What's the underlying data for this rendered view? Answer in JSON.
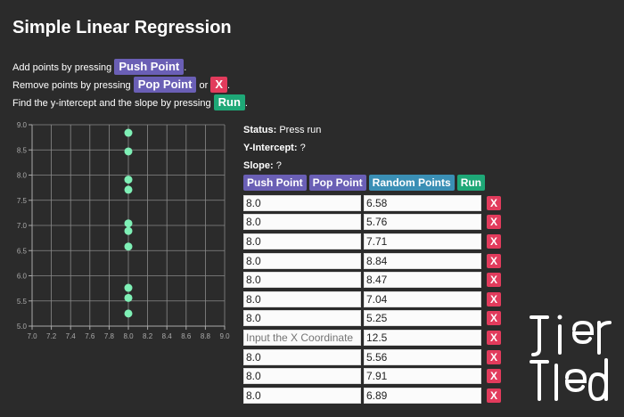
{
  "page": {
    "title": "Simple Linear Regression",
    "instructions": {
      "line1_prefix": "Add points by pressing",
      "line1_btn": "Push Point",
      "line1_suffix": ".",
      "line2_prefix": "Remove points by pressing",
      "line2_btn": "Pop Point",
      "line2_mid": "or",
      "line2_x": "X",
      "line2_suffix": ".",
      "line3_prefix": "Find the y-intercept and the slope by pressing",
      "line3_btn": "Run",
      "line3_suffix": "."
    }
  },
  "status": {
    "status_label": "Status:",
    "status_value": "Press run",
    "intercept_label": "Y-Intercept:",
    "intercept_value": "?",
    "slope_label": "Slope:",
    "slope_value": "?"
  },
  "buttons": {
    "push": "Push Point",
    "pop": "Pop Point",
    "random": "Random Points",
    "run": "Run"
  },
  "points": [
    {
      "x": "8.0",
      "y": "6.58"
    },
    {
      "x": "8.0",
      "y": "5.76"
    },
    {
      "x": "8.0",
      "y": "7.71"
    },
    {
      "x": "8.0",
      "y": "8.84"
    },
    {
      "x": "8.0",
      "y": "8.47"
    },
    {
      "x": "8.0",
      "y": "7.04"
    },
    {
      "x": "8.0",
      "y": "5.25"
    },
    {
      "x": "",
      "y": "12.5",
      "x_placeholder": "Input the X Coordinate"
    },
    {
      "x": "8.0",
      "y": "5.56"
    },
    {
      "x": "8.0",
      "y": "7.91"
    },
    {
      "x": "8.0",
      "y": "6.89"
    }
  ],
  "remove_label": "X",
  "colors": {
    "background": "#2b2b2b",
    "purple": "#6a5fb5",
    "red": "#e23b5c",
    "green": "#1ea877",
    "teal": "#3a8fb5",
    "point": "#7ff0b6"
  },
  "logo_icon": "tied-logo-icon",
  "chart_data": {
    "type": "scatter",
    "x": [
      8.0,
      8.0,
      8.0,
      8.0,
      8.0,
      8.0,
      8.0,
      8.0,
      8.0,
      8.0
    ],
    "y": [
      6.58,
      5.76,
      7.71,
      8.84,
      8.47,
      7.04,
      5.25,
      5.56,
      7.91,
      6.89
    ],
    "xlim": [
      7.0,
      9.0
    ],
    "ylim": [
      5.0,
      9.0
    ],
    "xticks": [
      "7.0",
      "7.2",
      "7.4",
      "7.6",
      "7.8",
      "8.0",
      "8.2",
      "8.4",
      "8.6",
      "8.8",
      "9.0"
    ],
    "yticks": [
      "5.0",
      "5.5",
      "6.0",
      "6.5",
      "7.0",
      "7.5",
      "8.0",
      "8.5",
      "9.0"
    ],
    "grid": true
  }
}
